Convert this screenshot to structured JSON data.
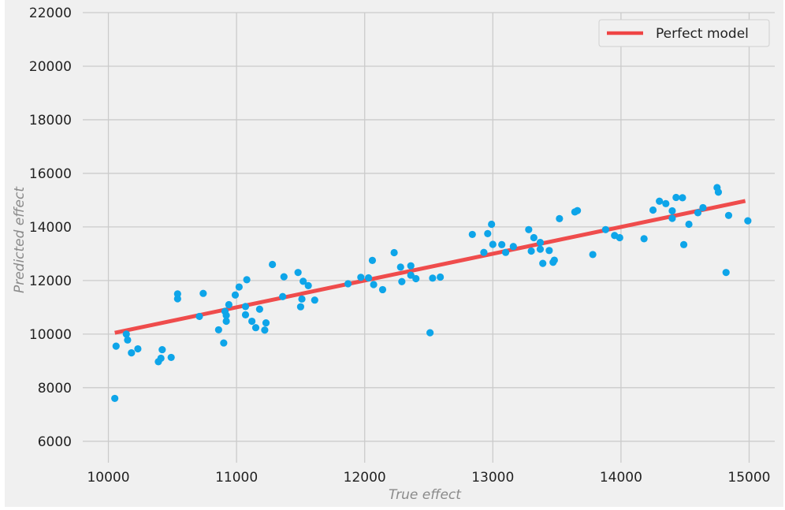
{
  "chart_data": {
    "type": "scatter",
    "title": "",
    "xlabel": "True effect",
    "ylabel": "Predicted effect",
    "xlim": [
      9800,
      15200
    ],
    "ylim": [
      5200,
      22000
    ],
    "xticks": [
      10000,
      11000,
      12000,
      13000,
      14000,
      15000
    ],
    "yticks": [
      6000,
      8000,
      10000,
      12000,
      14000,
      16000,
      18000,
      20000,
      22000
    ],
    "grid": true,
    "legend_position": "top-right",
    "colors": {
      "background": "#f0f0f0",
      "grid": "#cbcbcb",
      "points": "#0ea5e9",
      "line": "#ef4444"
    },
    "series": [
      {
        "type": "scatter",
        "x": [
          10050,
          10060,
          10140,
          10150,
          10180,
          10230,
          10390,
          10410,
          10420,
          10490,
          10540,
          10540,
          10710,
          10740,
          10860,
          10900,
          10910,
          10920,
          10920,
          10940,
          10990,
          11020,
          11070,
          11070,
          11080,
          11120,
          11150,
          11180,
          11220,
          11230,
          11280,
          11360,
          11370,
          11480,
          11500,
          11510,
          11520,
          11560,
          11610,
          11870,
          11970,
          12030,
          12060,
          12070,
          12140,
          12230,
          12280,
          12290,
          12360,
          12360,
          12400,
          12510,
          12530,
          12590,
          12840,
          12930,
          12960,
          12990,
          13000,
          13070,
          13100,
          13160,
          13280,
          13300,
          13320,
          13370,
          13370,
          13390,
          13440,
          13470,
          13480,
          13520,
          13640,
          13660,
          13780,
          13880,
          13950,
          13990,
          14180,
          14250,
          14300,
          14350,
          14400,
          14400,
          14430,
          14480,
          14490,
          14530,
          14600,
          14640,
          14750,
          14760,
          14820,
          14840,
          14990
        ],
        "y": [
          7600,
          9550,
          10000,
          9780,
          9300,
          9450,
          8970,
          9100,
          9420,
          9130,
          11500,
          11320,
          10660,
          11520,
          10160,
          9670,
          10850,
          10480,
          10700,
          11100,
          11460,
          11760,
          10720,
          11030,
          12030,
          10480,
          10240,
          10930,
          10150,
          10420,
          12600,
          11400,
          12140,
          12300,
          11020,
          11310,
          11970,
          11810,
          11270,
          11880,
          12120,
          12100,
          12750,
          11850,
          11660,
          13040,
          12500,
          11960,
          12200,
          12550,
          12070,
          10050,
          12090,
          12130,
          13720,
          13050,
          13750,
          14100,
          13350,
          13340,
          13050,
          13270,
          13900,
          13100,
          13600,
          13170,
          13420,
          12640,
          13120,
          12680,
          12760,
          14310,
          14560,
          14610,
          12970,
          13900,
          13680,
          13600,
          13560,
          14630,
          14960,
          14870,
          14600,
          14320,
          15100,
          15090,
          13340,
          14100,
          14530,
          14720,
          15470,
          15300,
          12300,
          14430,
          14230
        ]
      },
      {
        "type": "line",
        "name": "Perfect model",
        "x": [
          10050,
          14970
        ],
        "y": [
          10050,
          14970
        ]
      }
    ]
  }
}
